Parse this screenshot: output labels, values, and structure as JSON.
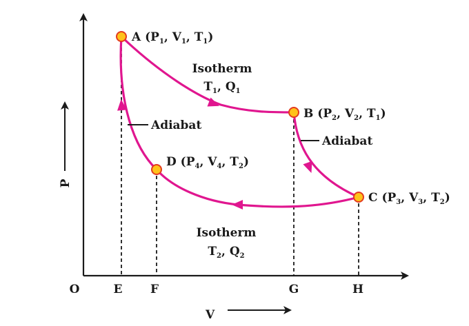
{
  "diagram": {
    "axes": {
      "x_label": "V",
      "y_label": "P",
      "origin": "O"
    },
    "ticks": [
      "E",
      "F",
      "G",
      "H"
    ],
    "points": {
      "A": {
        "letter": "A",
        "p": "1",
        "v": "1",
        "t": "1"
      },
      "B": {
        "letter": "B",
        "p": "2",
        "v": "2",
        "t": "1"
      },
      "C": {
        "letter": "C",
        "p": "3",
        "v": "3",
        "t": "2"
      },
      "D": {
        "letter": "D",
        "p": "4",
        "v": "4",
        "t": "2"
      }
    },
    "labels": {
      "iso1_title": "Isotherm",
      "iso1_t": "T",
      "iso1_t_sub": "1",
      "iso1_q": "Q",
      "iso1_q_sub": "1",
      "iso2_title": "Isotherm",
      "iso2_t": "T",
      "iso2_t_sub": "2",
      "iso2_q": "Q",
      "iso2_q_sub": "2",
      "adiabat1": "Adiabat",
      "adiabat2": "Adiabat"
    },
    "colors": {
      "curve": "#e0168f",
      "point_fill": "#ffc21a",
      "point_stroke": "#e33a1f",
      "axis": "#1a1a1a"
    }
  }
}
